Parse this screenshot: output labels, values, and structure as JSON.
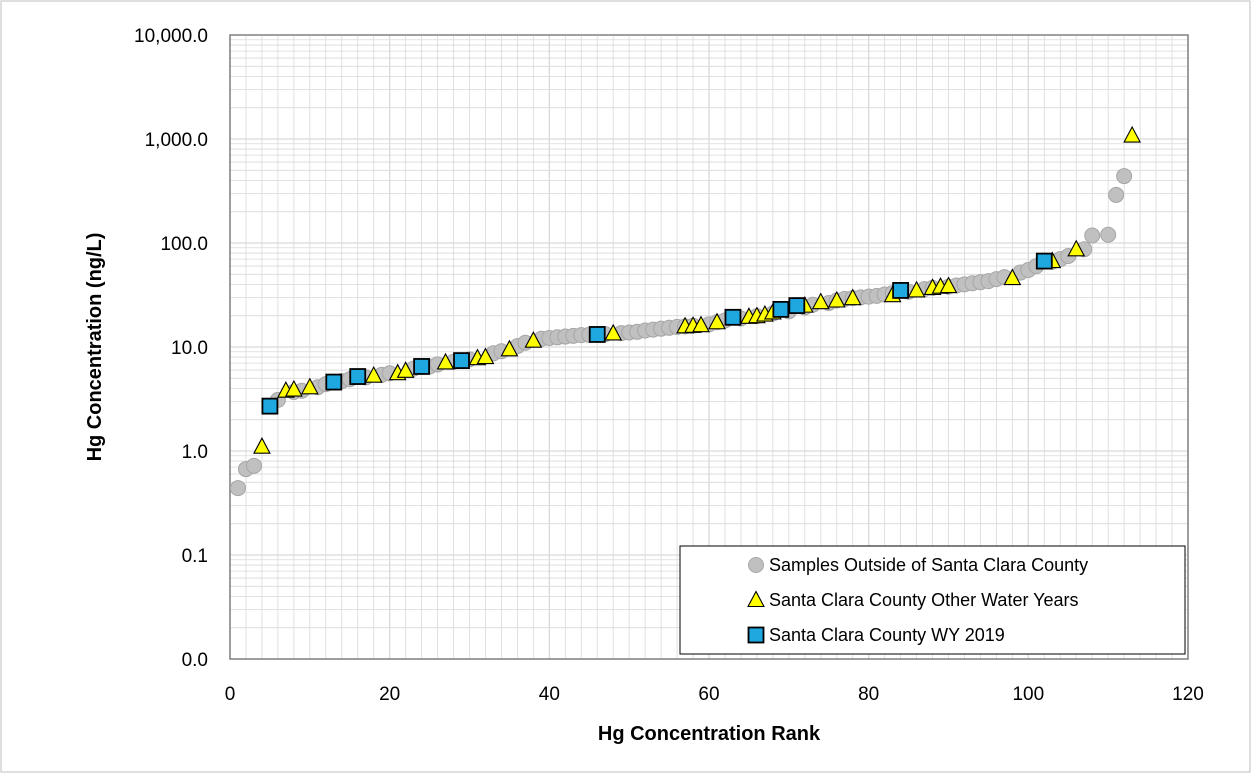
{
  "chart_data": {
    "type": "scatter",
    "title": "",
    "xlabel": "Hg Concentration Rank",
    "ylabel": "Hg Concentration (ng/L)",
    "x_axis": {
      "min": 0,
      "max": 120,
      "major_step": 20,
      "minor_step": 2,
      "tick_labels": [
        "0",
        "20",
        "40",
        "60",
        "80",
        "100",
        "120"
      ]
    },
    "y_axis": {
      "scale": "log",
      "min": 0.01,
      "max": 10000,
      "tick_values": [
        0.01,
        0.1,
        1,
        10,
        100,
        1000,
        10000
      ],
      "tick_labels": [
        "0.0",
        "0.1",
        "1.0",
        "10.0",
        "100.0",
        "1,000.0",
        "10,000.0"
      ]
    },
    "grid": true,
    "legend_position": "bottom-right",
    "colors": {
      "outside": "#c0c0c0",
      "other_years": "#ffff00",
      "wy2019": "#1fa7e0",
      "grid": "#d9d9d9"
    },
    "series": [
      {
        "name": "Samples Outside of Santa Clara County",
        "marker": "circle",
        "points": [
          [
            1,
            0.44
          ],
          [
            2,
            0.67
          ],
          [
            3,
            0.72
          ],
          [
            6,
            3.1
          ],
          [
            8,
            3.7
          ],
          [
            9,
            3.8
          ],
          [
            11,
            4.1
          ],
          [
            12,
            4.4
          ],
          [
            14,
            4.7
          ],
          [
            15,
            4.9
          ],
          [
            17,
            5.1
          ],
          [
            19,
            5.4
          ],
          [
            20,
            5.6
          ],
          [
            23,
            6.2
          ],
          [
            25,
            6.5
          ],
          [
            26,
            6.8
          ],
          [
            28,
            7.2
          ],
          [
            30,
            7.6
          ],
          [
            33,
            8.7
          ],
          [
            34,
            9.1
          ],
          [
            36,
            10.2
          ],
          [
            37,
            11
          ],
          [
            39,
            12
          ],
          [
            40,
            12.2
          ],
          [
            41,
            12.4
          ],
          [
            42,
            12.6
          ],
          [
            43,
            12.8
          ],
          [
            44,
            13
          ],
          [
            45,
            13.1
          ],
          [
            47,
            13.3
          ],
          [
            49,
            13.6
          ],
          [
            50,
            13.8
          ],
          [
            51,
            14
          ],
          [
            52,
            14.4
          ],
          [
            53,
            14.7
          ],
          [
            54,
            15
          ],
          [
            55,
            15.3
          ],
          [
            56,
            15.6
          ],
          [
            57,
            15.8
          ],
          [
            58,
            16
          ],
          [
            60,
            16.5
          ],
          [
            61,
            17.3
          ],
          [
            62,
            18
          ],
          [
            64,
            18.8
          ],
          [
            66,
            19.8
          ],
          [
            68,
            21
          ],
          [
            70,
            22
          ],
          [
            72,
            24
          ],
          [
            73,
            25.5
          ],
          [
            75,
            26.5
          ],
          [
            76,
            28
          ],
          [
            77,
            29
          ],
          [
            78,
            29.5
          ],
          [
            79,
            30
          ],
          [
            80,
            30.5
          ],
          [
            81,
            31
          ],
          [
            82,
            32
          ],
          [
            83,
            33
          ],
          [
            85,
            34
          ],
          [
            87,
            36
          ],
          [
            88,
            37
          ],
          [
            90,
            38
          ],
          [
            91,
            39
          ],
          [
            92,
            40
          ],
          [
            93,
            41
          ],
          [
            94,
            42
          ],
          [
            95,
            43
          ],
          [
            96,
            45
          ],
          [
            97,
            47
          ],
          [
            99,
            52
          ],
          [
            100,
            55
          ],
          [
            101,
            60
          ],
          [
            103,
            66
          ],
          [
            104,
            70
          ],
          [
            105,
            75
          ],
          [
            107,
            87
          ],
          [
            108,
            118
          ],
          [
            110,
            120
          ],
          [
            111,
            290
          ],
          [
            112,
            440
          ]
        ]
      },
      {
        "name": "Santa Clara County Other Water Years",
        "marker": "triangle",
        "points": [
          [
            4,
            1.1
          ],
          [
            7,
            3.8
          ],
          [
            8,
            3.9
          ],
          [
            10,
            4.1
          ],
          [
            18,
            5.3
          ],
          [
            21,
            5.6
          ],
          [
            22,
            5.9
          ],
          [
            27,
            7.1
          ],
          [
            31,
            7.8
          ],
          [
            32,
            8
          ],
          [
            35,
            9.5
          ],
          [
            38,
            11.5
          ],
          [
            48,
            13.5
          ],
          [
            57,
            15.8
          ],
          [
            58,
            16
          ],
          [
            59,
            16.2
          ],
          [
            61,
            17.3
          ],
          [
            65,
            19.5
          ],
          [
            66,
            19.8
          ],
          [
            67,
            20.5
          ],
          [
            68,
            21.5
          ],
          [
            72,
            25
          ],
          [
            74,
            27
          ],
          [
            76,
            28
          ],
          [
            78,
            29.5
          ],
          [
            83,
            31.5
          ],
          [
            86,
            35
          ],
          [
            88,
            37
          ],
          [
            89,
            38
          ],
          [
            90,
            38.5
          ],
          [
            98,
            46
          ],
          [
            103,
            67
          ],
          [
            106,
            87
          ],
          [
            113,
            1080
          ]
        ]
      },
      {
        "name": "Santa Clara County WY 2019",
        "marker": "square",
        "points": [
          [
            5,
            2.7
          ],
          [
            13,
            4.6
          ],
          [
            16,
            5.2
          ],
          [
            24,
            6.5
          ],
          [
            29,
            7.4
          ],
          [
            46,
            13.2
          ],
          [
            63,
            19.3
          ],
          [
            69,
            23
          ],
          [
            71,
            25
          ],
          [
            84,
            35
          ],
          [
            102,
            67
          ]
        ]
      }
    ]
  }
}
